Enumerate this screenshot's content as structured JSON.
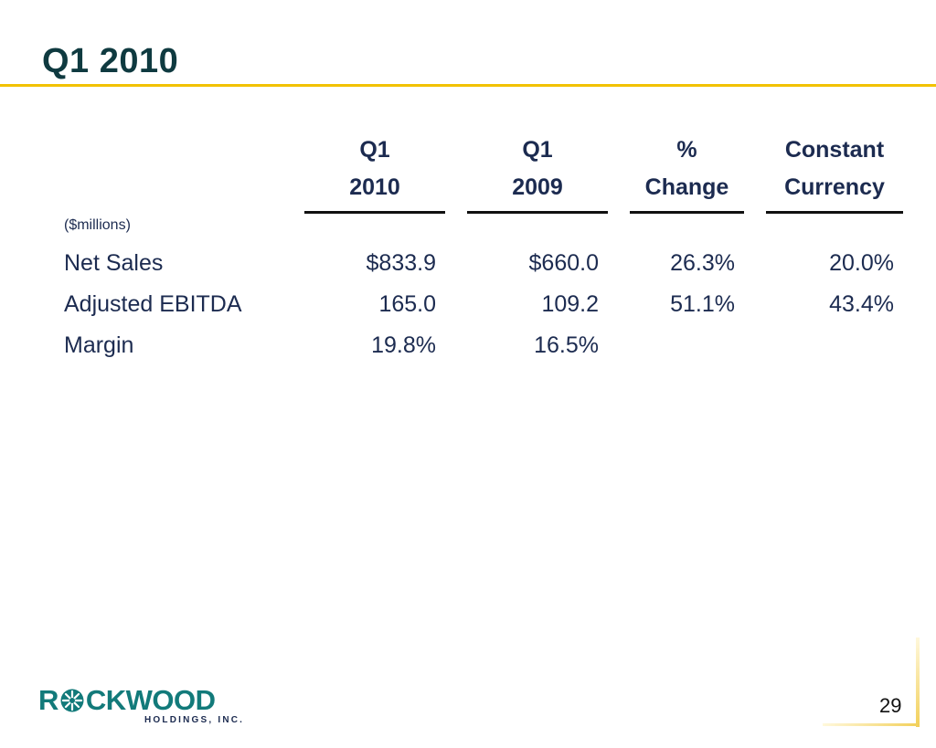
{
  "slide": {
    "title": "Q1 2010",
    "page_number": "29"
  },
  "table": {
    "columns": [
      {
        "line1": "Q1",
        "line2": "2010"
      },
      {
        "line1": "Q1",
        "line2": "2009"
      },
      {
        "line1": "%",
        "line2": "Change"
      },
      {
        "line1": "Constant",
        "line2": "Currency"
      }
    ],
    "unit_label": "($millions)",
    "rows": [
      {
        "label": "Net Sales",
        "values": [
          "$833.9",
          "$660.0",
          "26.3%",
          "20.0%"
        ]
      },
      {
        "label": "Adjusted EBITDA",
        "values": [
          "165.0",
          "109.2",
          "51.1%",
          "43.4%"
        ]
      },
      {
        "label": "Margin",
        "values": [
          "19.8%",
          "16.5%",
          "",
          ""
        ]
      }
    ]
  },
  "logo": {
    "brand": "ROCKWOOD",
    "brand_left": "R",
    "brand_right": "CKWOOD",
    "subtitle": "HOLDINGS, INC."
  },
  "colors": {
    "title": "#0f3a40",
    "accent_rule": "#f2c200",
    "text": "#1c2b50",
    "logo": "#127a7a"
  }
}
